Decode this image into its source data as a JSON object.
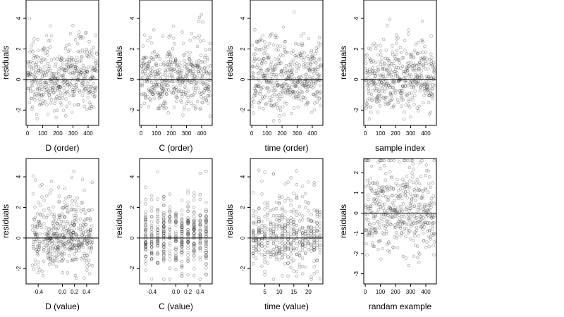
{
  "figure": {
    "rows": 2,
    "cols": 4,
    "point_style": "open-circle",
    "point_color": "#000000",
    "point_opacity": 0.35,
    "reference_line_color": "#000000",
    "frame_color": "#000000"
  },
  "chart_data": [
    {
      "type": "scatter",
      "xlabel": "D (order)",
      "ylabel": "residuals",
      "xlim": [
        -10,
        470
      ],
      "ylim": [
        -3,
        5.2
      ],
      "xticks": [
        "0",
        "100",
        "200",
        "300",
        "400"
      ],
      "xtick_values": [
        0,
        100,
        200,
        300,
        400
      ],
      "yticks": [
        "-2",
        "0",
        "2",
        "4"
      ],
      "ytick_values": [
        -2,
        0,
        2,
        4
      ],
      "hline": 0,
      "x_distribution": "order",
      "n_points": 460,
      "y_range": [
        -2.7,
        4.9
      ]
    },
    {
      "type": "scatter",
      "xlabel": "C (order)",
      "ylabel": "residuals",
      "xlim": [
        -10,
        470
      ],
      "ylim": [
        -3,
        5.2
      ],
      "xticks": [
        "0",
        "100",
        "200",
        "300",
        "400"
      ],
      "xtick_values": [
        0,
        100,
        200,
        300,
        400
      ],
      "yticks": [
        "-2",
        "0",
        "2",
        "4"
      ],
      "ytick_values": [
        -2,
        0,
        2,
        4
      ],
      "hline": 0,
      "x_distribution": "order",
      "n_points": 460,
      "y_range": [
        -2.7,
        4.9
      ]
    },
    {
      "type": "scatter",
      "xlabel": "time (order)",
      "ylabel": "residuals",
      "xlim": [
        -10,
        470
      ],
      "ylim": [
        -3,
        5.2
      ],
      "xticks": [
        "0",
        "100",
        "200",
        "300",
        "400"
      ],
      "xtick_values": [
        0,
        100,
        200,
        300,
        400
      ],
      "yticks": [
        "-2",
        "0",
        "2",
        "4"
      ],
      "ytick_values": [
        -2,
        0,
        2,
        4
      ],
      "hline": 0,
      "x_distribution": "order",
      "n_points": 460,
      "y_range": [
        -2.7,
        4.9
      ]
    },
    {
      "type": "scatter",
      "xlabel": "sample index",
      "ylabel": "residuals",
      "xlim": [
        -10,
        470
      ],
      "ylim": [
        -3,
        5.2
      ],
      "xticks": [
        "0",
        "100",
        "200",
        "300",
        "400"
      ],
      "xtick_values": [
        0,
        100,
        200,
        300,
        400
      ],
      "yticks": [
        "-2",
        "0",
        "2",
        "4"
      ],
      "ytick_values": [
        -2,
        0,
        2,
        4
      ],
      "hline": 0,
      "x_distribution": "order",
      "n_points": 460,
      "y_range": [
        -2.7,
        4.9
      ]
    },
    {
      "type": "scatter",
      "xlabel": "D (value)",
      "ylabel": "residuals",
      "xlim": [
        -0.6,
        0.6
      ],
      "ylim": [
        -3,
        5.2
      ],
      "xticks": [
        "-0.4",
        "0.0",
        "0.2",
        "0.4"
      ],
      "xtick_values": [
        -0.4,
        0.0,
        0.2,
        0.4
      ],
      "yticks": [
        "-2",
        "0",
        "2",
        "4"
      ],
      "ytick_values": [
        -2,
        0,
        2,
        4
      ],
      "hline": 0,
      "x_distribution": "continuous",
      "n_points": 460,
      "y_range": [
        -2.7,
        4.9
      ]
    },
    {
      "type": "scatter",
      "xlabel": "C (value)",
      "ylabel": "residuals",
      "xlim": [
        -0.6,
        0.6
      ],
      "ylim": [
        -3,
        5.2
      ],
      "xticks": [
        "-0.4",
        "0.0",
        "0.2",
        "0.4"
      ],
      "xtick_values": [
        -0.4,
        0.0,
        0.2,
        0.4
      ],
      "yticks": [
        "-2",
        "0",
        "2",
        "4"
      ],
      "ytick_values": [
        -2,
        0,
        2,
        4
      ],
      "hline": 0,
      "x_distribution": "discrete",
      "x_levels": [
        -0.5,
        -0.4,
        -0.3,
        -0.2,
        -0.1,
        0.0,
        0.1,
        0.2,
        0.3,
        0.4,
        0.5
      ],
      "n_points": 460,
      "y_range": [
        -2.7,
        4.9
      ]
    },
    {
      "type": "scatter",
      "xlabel": "time (value)",
      "ylabel": "residuals",
      "xlim": [
        0,
        25
      ],
      "ylim": [
        -3,
        5.2
      ],
      "xticks": [
        "5",
        "10",
        "15",
        "20"
      ],
      "xtick_values": [
        5,
        10,
        15,
        20
      ],
      "yticks": [
        "-2",
        "0",
        "2",
        "4"
      ],
      "ytick_values": [
        -2,
        0,
        2,
        4
      ],
      "hline": 0,
      "x_distribution": "discrete",
      "x_levels": [
        1,
        2,
        3,
        4,
        5,
        6,
        7,
        8,
        9,
        10,
        11,
        12,
        13,
        14,
        15,
        16,
        17,
        18,
        19,
        20,
        21,
        22,
        23,
        24
      ],
      "n_points": 460,
      "y_range": [
        -2.7,
        4.9
      ]
    },
    {
      "type": "scatter",
      "xlabel": "randam example",
      "ylabel": "residuals",
      "xlim": [
        -10,
        470
      ],
      "ylim": [
        -3.5,
        2.7
      ],
      "xticks": [
        "0",
        "100",
        "200",
        "300",
        "400"
      ],
      "xtick_values": [
        0,
        100,
        200,
        300,
        400
      ],
      "yticks": [
        "-3",
        "-2",
        "-1",
        "0",
        "1",
        "2"
      ],
      "ytick_values": [
        -3,
        -2,
        -1,
        0,
        1,
        2
      ],
      "hline": 0,
      "x_distribution": "order",
      "n_points": 460,
      "y_range": [
        -3.3,
        2.6
      ]
    }
  ]
}
